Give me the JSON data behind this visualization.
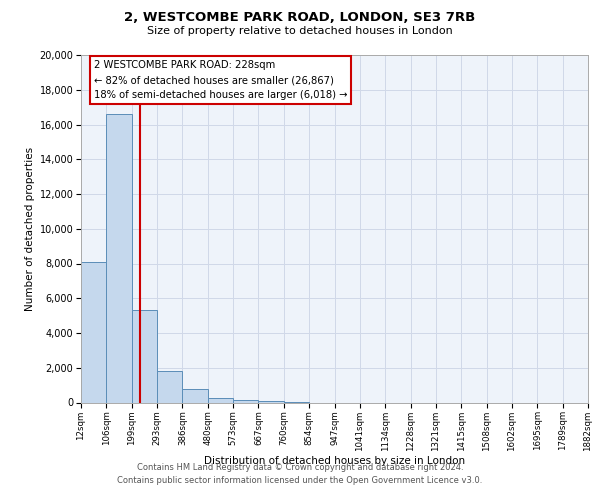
{
  "title": "2, WESTCOMBE PARK ROAD, LONDON, SE3 7RB",
  "subtitle": "Size of property relative to detached houses in London",
  "xlabel": "Distribution of detached houses by size in London",
  "ylabel": "Number of detached properties",
  "bin_labels": [
    "12sqm",
    "106sqm",
    "199sqm",
    "293sqm",
    "386sqm",
    "480sqm",
    "573sqm",
    "667sqm",
    "760sqm",
    "854sqm",
    "947sqm",
    "1041sqm",
    "1134sqm",
    "1228sqm",
    "1321sqm",
    "1415sqm",
    "1508sqm",
    "1602sqm",
    "1695sqm",
    "1789sqm",
    "1882sqm"
  ],
  "bar_heights": [
    8100,
    16600,
    5300,
    1800,
    750,
    250,
    120,
    60,
    20,
    0,
    0,
    0,
    0,
    0,
    0,
    0,
    0,
    0,
    0,
    0
  ],
  "bar_color": "#c5d8ed",
  "bar_edge_color": "#5b8db8",
  "grid_color": "#d0d8e8",
  "background_color": "#eef3fa",
  "vline_color": "#cc0000",
  "annotation_text": "2 WESTCOMBE PARK ROAD: 228sqm\n← 82% of detached houses are smaller (26,867)\n18% of semi-detached houses are larger (6,018) →",
  "annotation_box_color": "#ffffff",
  "annotation_box_edge": "#cc0000",
  "ylim": [
    0,
    20000
  ],
  "yticks": [
    0,
    2000,
    4000,
    6000,
    8000,
    10000,
    12000,
    14000,
    16000,
    18000,
    20000
  ],
  "footer_line1": "Contains HM Land Registry data © Crown copyright and database right 2024.",
  "footer_line2": "Contains public sector information licensed under the Open Government Licence v3.0."
}
